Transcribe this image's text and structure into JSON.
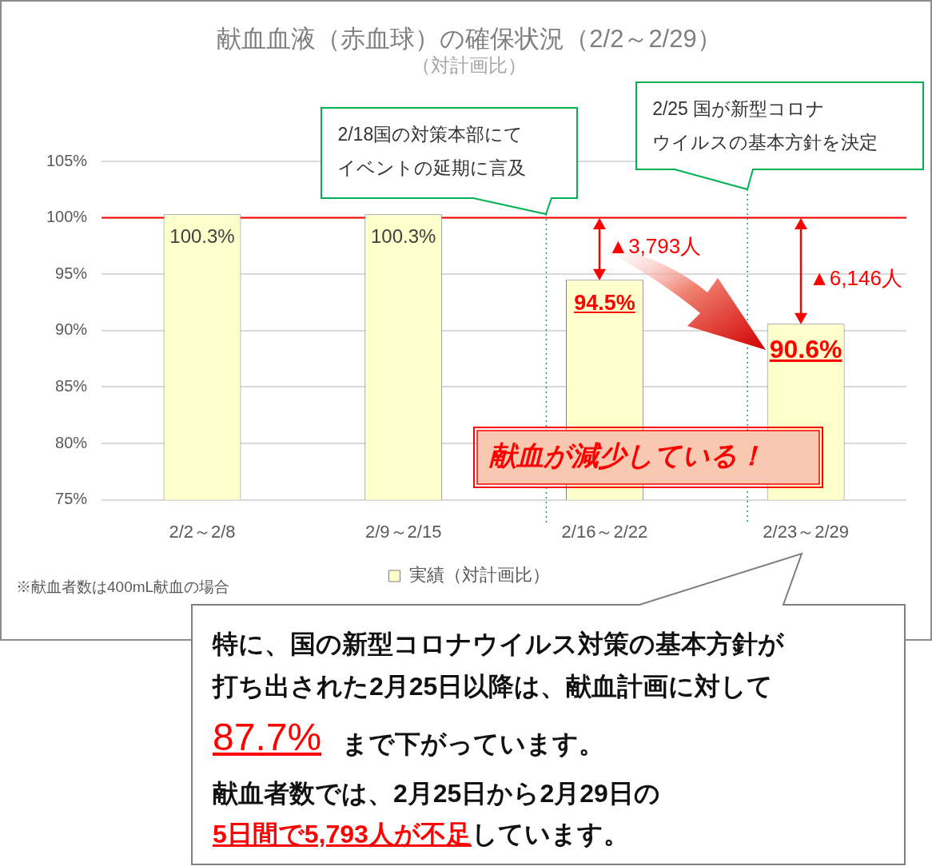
{
  "chart_data": {
    "type": "bar",
    "title": "献血血液（赤血球）の確保状況（2/2～2/29）",
    "subtitle": "（対計画比）",
    "categories": [
      "2/2～2/8",
      "2/9～2/15",
      "2/16～2/22",
      "2/23～2/29"
    ],
    "series": [
      {
        "name": "実績（対計画比）",
        "color": "#ffffcc",
        "values": [
          100.3,
          100.3,
          94.5,
          90.6
        ],
        "value_labels": [
          "100.3%",
          "100.3%",
          "94.5%",
          "90.6%"
        ]
      }
    ],
    "ylim": [
      75,
      105
    ],
    "yticks": [
      {
        "value": 75,
        "label": "75%"
      },
      {
        "value": 80,
        "label": "80%"
      },
      {
        "value": 85,
        "label": "85%"
      },
      {
        "value": 90,
        "label": "90%"
      },
      {
        "value": 95,
        "label": "95%"
      },
      {
        "value": 100,
        "label": "100%"
      },
      {
        "value": 105,
        "label": "105%"
      }
    ],
    "grid": "y",
    "legend": "bottom",
    "ref_lines": [
      {
        "axis": "y",
        "value": 100,
        "color": "#ff0000"
      },
      {
        "axis": "x",
        "value": "2/16～2/22",
        "color": "#00b050",
        "line_style": "dotted"
      },
      {
        "axis": "x",
        "value": "2/23～2/29",
        "color": "#00b050",
        "line_style": "dotted"
      }
    ],
    "annotations": [
      "▲3,793人",
      "▲6,146人",
      "献血が減少している！",
      "※献血者数は400mL献血の場合",
      "特に、国の新型コロナウイルス対策の基本方針が",
      "打ち出された2月25日以降は、献血計画に対して",
      "87.7%",
      "まで下がっています。",
      "献血者数では、2月25日から2月29日の",
      "5日間で5,793人が不足",
      "しています。",
      "2/18国の対策本部にて",
      "イベントの延期に言及",
      "2/25 国が新型コロナ",
      "ウイルスの基本方針を決定"
    ]
  }
}
